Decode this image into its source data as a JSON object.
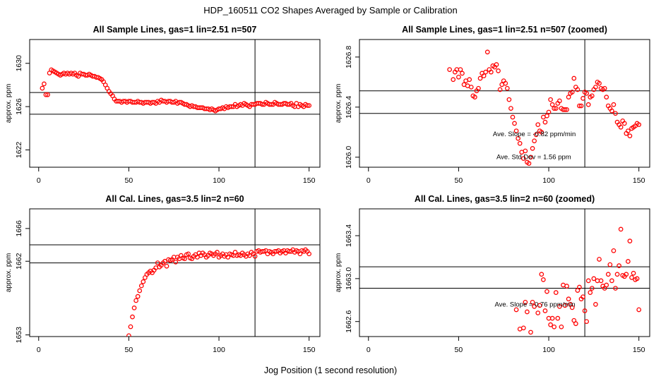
{
  "figure": {
    "title": "HDP_160511  CO2 Shapes Averaged by Sample or Calibration",
    "xlabel": "Jog Position (1 second resolution)",
    "marker_color": "#ff0000",
    "line_color": "#000000"
  },
  "chart_data": [
    {
      "type": "scatter",
      "title": "All Sample Lines, gas=1 lin=2.51 n=507",
      "ylabel": "approx. ppm",
      "xlim": [
        -5,
        156
      ],
      "ylim": [
        1620.4,
        1632.2
      ],
      "xticks": [
        0,
        50,
        100,
        150
      ],
      "yticks": [
        1622,
        1626,
        1630
      ],
      "hlines": [
        1627.3,
        1625.3
      ],
      "vline": 120,
      "annotations": [],
      "series": [
        {
          "name": "",
          "x": [
            2,
            3,
            4,
            5,
            6,
            7,
            8,
            9,
            10,
            11,
            12,
            13,
            14,
            15,
            16,
            17,
            18,
            19,
            20,
            21,
            22,
            23,
            24,
            25,
            26,
            27,
            28,
            29,
            30,
            31,
            32,
            33,
            34,
            35,
            36,
            37,
            38,
            39,
            40,
            41,
            42,
            43,
            44,
            45,
            46,
            47,
            48,
            49,
            50,
            51,
            52,
            53,
            54,
            55,
            56,
            57,
            58,
            59,
            60,
            61,
            62,
            63,
            64,
            65,
            66,
            67,
            68,
            69,
            70,
            71,
            72,
            73,
            74,
            75,
            76,
            77,
            78,
            79,
            80,
            81,
            82,
            83,
            84,
            85,
            86,
            87,
            88,
            89,
            90,
            91,
            92,
            93,
            94,
            95,
            96,
            97,
            98,
            99,
            100,
            101,
            102,
            103,
            104,
            105,
            106,
            107,
            108,
            109,
            110,
            111,
            112,
            113,
            114,
            115,
            116,
            117,
            118,
            119,
            120,
            121,
            122,
            123,
            124,
            125,
            126,
            127,
            128,
            129,
            130,
            131,
            132,
            133,
            134,
            135,
            136,
            137,
            138,
            139,
            140,
            141,
            142,
            143,
            144,
            145,
            146,
            147,
            148,
            149,
            150
          ],
          "y": [
            1627.7,
            1628.1,
            1627.1,
            1627.1,
            1629.1,
            1629.4,
            1629.3,
            1629.2,
            1629.1,
            1629.0,
            1628.9,
            1629.0,
            1629.1,
            1629.0,
            1629.1,
            1629.0,
            1629.1,
            1629.0,
            1629.1,
            1628.9,
            1628.8,
            1629.1,
            1629.0,
            1629.0,
            1628.9,
            1628.9,
            1629.0,
            1628.9,
            1628.8,
            1628.8,
            1628.7,
            1628.7,
            1628.6,
            1628.5,
            1628.3,
            1628.0,
            1627.7,
            1627.4,
            1627.2,
            1627.0,
            1626.7,
            1626.5,
            1626.5,
            1626.5,
            1626.4,
            1626.5,
            1626.5,
            1626.4,
            1626.5,
            1626.5,
            1626.4,
            1626.4,
            1626.4,
            1626.5,
            1626.4,
            1626.4,
            1626.3,
            1626.4,
            1626.4,
            1626.4,
            1626.3,
            1626.4,
            1626.4,
            1626.3,
            1626.5,
            1626.4,
            1626.6,
            1626.5,
            1626.5,
            1626.4,
            1626.5,
            1626.5,
            1626.4,
            1626.4,
            1626.5,
            1626.3,
            1626.4,
            1626.4,
            1626.3,
            1626.2,
            1626.2,
            1626.1,
            1626.0,
            1626.1,
            1626.0,
            1626.0,
            1625.9,
            1625.9,
            1625.9,
            1625.9,
            1625.8,
            1625.8,
            1625.8,
            1625.7,
            1625.8,
            1625.7,
            1625.6,
            1625.7,
            1625.8,
            1625.8,
            1625.9,
            1625.8,
            1626.0,
            1625.9,
            1626.0,
            1626.0,
            1626.0,
            1626.2,
            1626.0,
            1626.1,
            1626.2,
            1626.1,
            1626.3,
            1626.2,
            1626.1,
            1626.0,
            1626.2,
            1626.2,
            1626.2,
            1626.3,
            1626.3,
            1626.3,
            1626.2,
            1626.2,
            1626.4,
            1626.3,
            1626.2,
            1626.2,
            1626.2,
            1626.4,
            1626.3,
            1626.2,
            1626.2,
            1626.2,
            1626.3,
            1626.3,
            1626.2,
            1626.2,
            1626.3,
            1626.1,
            1626.0,
            1626.3,
            1626.0,
            1626.2,
            1626.1,
            1626.0,
            1626.2,
            1626.1,
            1626.1
          ]
        }
      ]
    },
    {
      "type": "scatter",
      "title": "All Sample Lines, gas=1 lin=2.51 n=507 (zoomed)",
      "ylabel": "approx. ppm",
      "xlim": [
        -5,
        156
      ],
      "ylim": [
        1625.92,
        1626.94
      ],
      "xticks": [
        0,
        50,
        100,
        150
      ],
      "yticks": [
        1626.0,
        1626.4,
        1626.8
      ],
      "ytick_labels": [
        "1626.0",
        "1626.4",
        "1626.8"
      ],
      "hlines": [
        1626.53,
        1626.35
      ],
      "vline": 120,
      "annotations": [
        {
          "text": "Ave. Slope =  -0.82  ppm/min",
          "x": 69,
          "y": 1626.184
        },
        {
          "text": "Ave. Std Dev =  1.56  ppm",
          "x": 71,
          "y": 1626.003
        }
      ],
      "series": [
        {
          "name": "",
          "x": [
            45,
            47,
            48,
            49,
            50,
            51,
            52,
            53,
            54,
            55,
            56,
            57,
            58,
            59,
            60,
            61,
            62,
            63,
            64,
            65,
            66,
            67,
            68,
            69,
            70,
            71,
            72,
            73,
            74,
            75,
            76,
            77,
            78,
            79,
            80,
            81,
            82,
            83,
            84,
            85,
            86,
            87,
            88,
            89,
            90,
            91,
            92,
            93,
            94,
            95,
            96,
            97,
            98,
            99,
            100,
            101,
            102,
            103,
            104,
            105,
            106,
            107,
            108,
            109,
            110,
            111,
            112,
            113,
            114,
            115,
            116,
            117,
            118,
            119,
            120,
            121,
            122,
            123,
            124,
            125,
            126,
            127,
            128,
            129,
            130,
            131,
            132,
            133,
            134,
            135,
            136,
            137,
            138,
            139,
            140,
            141,
            142,
            143,
            144,
            145,
            146,
            147,
            148,
            149,
            150
          ],
          "y": [
            1626.7,
            1626.62,
            1626.68,
            1626.7,
            1626.64,
            1626.7,
            1626.67,
            1626.58,
            1626.61,
            1626.57,
            1626.62,
            1626.56,
            1626.49,
            1626.48,
            1626.53,
            1626.55,
            1626.63,
            1626.67,
            1626.65,
            1626.68,
            1626.84,
            1626.7,
            1626.68,
            1626.73,
            1626.72,
            1626.74,
            1626.69,
            1626.54,
            1626.58,
            1626.61,
            1626.59,
            1626.55,
            1626.46,
            1626.39,
            1626.32,
            1626.27,
            1626.21,
            1626.15,
            1626.11,
            1626.04,
            1625.99,
            1626.05,
            1625.96,
            1625.95,
            1626.0,
            1626.07,
            1626.13,
            1626.18,
            1626.26,
            1626.21,
            1626.2,
            1626.32,
            1626.28,
            1626.33,
            1626.36,
            1626.46,
            1626.42,
            1626.39,
            1626.39,
            1626.43,
            1626.45,
            1626.39,
            1626.38,
            1626.38,
            1626.38,
            1626.48,
            1626.51,
            1626.52,
            1626.63,
            1626.56,
            1626.54,
            1626.41,
            1626.41,
            1626.47,
            1626.52,
            1626.51,
            1626.42,
            1626.48,
            1626.49,
            1626.54,
            1626.56,
            1626.6,
            1626.59,
            1626.55,
            1626.54,
            1626.55,
            1626.48,
            1626.41,
            1626.39,
            1626.37,
            1626.42,
            1626.35,
            1626.28,
            1626.26,
            1626.24,
            1626.29,
            1626.27,
            1626.19,
            1626.21,
            1626.17,
            1626.23,
            1626.24,
            1626.25,
            1626.27,
            1626.26
          ]
        }
      ]
    },
    {
      "type": "scatter",
      "title": "All Cal. Lines, gas=3.5 lin=2 n=60",
      "ylabel": "approx. ppm",
      "xlim": [
        -5,
        156
      ],
      "ylim": [
        1652.8,
        1668.4
      ],
      "xticks": [
        0,
        50,
        100,
        150
      ],
      "yticks": [
        1653,
        1662,
        1666
      ],
      "hlines": [
        1664.0,
        1661.8
      ],
      "vline": 120,
      "annotations": [],
      "series": [
        {
          "name": "",
          "x": [
            50,
            51,
            52,
            53,
            54,
            55,
            56,
            57,
            58,
            59,
            60,
            61,
            62,
            63,
            64,
            65,
            66,
            67,
            68,
            69,
            70,
            71,
            72,
            73,
            74,
            75,
            76,
            77,
            78,
            79,
            80,
            81,
            82,
            83,
            84,
            85,
            86,
            87,
            88,
            89,
            90,
            91,
            92,
            93,
            94,
            95,
            96,
            97,
            98,
            99,
            100,
            101,
            102,
            103,
            104,
            105,
            106,
            107,
            108,
            109,
            110,
            111,
            112,
            113,
            114,
            115,
            116,
            117,
            118,
            119,
            120,
            121,
            122,
            123,
            124,
            125,
            126,
            127,
            128,
            129,
            130,
            131,
            132,
            133,
            134,
            135,
            136,
            137,
            138,
            139,
            140,
            141,
            142,
            143,
            144,
            145,
            146,
            147,
            148,
            149,
            150
          ],
          "y": [
            1652.9,
            1654.0,
            1655.2,
            1656.3,
            1657.2,
            1657.7,
            1658.4,
            1659.0,
            1659.5,
            1660.0,
            1660.4,
            1660.6,
            1660.8,
            1660.6,
            1660.9,
            1661.2,
            1661.8,
            1661.3,
            1661.5,
            1661.8,
            1662.0,
            1661.4,
            1662.2,
            1662.1,
            1662.2,
            1662.5,
            1661.9,
            1662.5,
            1662.3,
            1662.7,
            1662.4,
            1662.3,
            1662.8,
            1662.9,
            1662.4,
            1662.3,
            1662.6,
            1662.8,
            1662.5,
            1663.0,
            1662.7,
            1663.0,
            1662.8,
            1662.5,
            1662.7,
            1663.0,
            1662.9,
            1662.7,
            1662.9,
            1663.1,
            1662.5,
            1662.7,
            1662.9,
            1662.6,
            1662.8,
            1662.5,
            1662.9,
            1662.8,
            1662.7,
            1663.1,
            1662.7,
            1662.8,
            1662.7,
            1663.0,
            1662.8,
            1662.6,
            1662.9,
            1662.7,
            1663.1,
            1662.9,
            1662.6,
            1663.2,
            1663.3,
            1663.1,
            1663.2,
            1663.2,
            1663.3,
            1662.9,
            1663.2,
            1663.1,
            1662.9,
            1663.2,
            1663.2,
            1663.3,
            1663.0,
            1663.2,
            1663.3,
            1663.0,
            1663.3,
            1663.2,
            1663.2,
            1663.4,
            1663.1,
            1663.3,
            1663.2,
            1662.9,
            1663.3,
            1663.2,
            1663.4,
            1663.2,
            1662.9
          ]
        }
      ]
    },
    {
      "type": "scatter",
      "title": "All Cal. Lines, gas=3.5 lin=2 n=60 (zoomed)",
      "ylabel": "approx. ppm",
      "xlim": [
        -5,
        156
      ],
      "ylim": [
        1662.46,
        1663.65
      ],
      "xticks": [
        0,
        50,
        100,
        150
      ],
      "yticks": [
        1662.6,
        1663.0,
        1663.4
      ],
      "ytick_labels": [
        "1662.6",
        "1663.0",
        "1663.4"
      ],
      "hlines": [
        1663.11,
        1662.91
      ],
      "vline": 120,
      "annotations": [
        {
          "text": "Ave. Slope =  0.76  ppm/min",
          "x": 70,
          "y": 1662.76
        }
      ],
      "series": [
        {
          "name": "",
          "x": [
            82,
            84,
            86,
            87,
            88,
            90,
            91,
            92,
            94,
            95,
            96,
            97,
            98,
            99,
            100,
            101,
            102,
            103,
            104,
            105,
            106,
            107,
            108,
            109,
            110,
            111,
            112,
            113,
            114,
            115,
            116,
            117,
            118,
            119,
            120,
            121,
            122,
            123,
            124,
            125,
            126,
            127,
            128,
            129,
            130,
            131,
            132,
            133,
            134,
            135,
            136,
            137,
            138,
            139,
            140,
            141,
            142,
            143,
            144,
            145,
            146,
            147,
            148,
            149,
            150
          ],
          "y": [
            1662.71,
            1662.53,
            1662.54,
            1662.78,
            1662.69,
            1662.5,
            1662.78,
            1662.74,
            1662.68,
            1662.75,
            1663.04,
            1662.99,
            1662.7,
            1662.88,
            1662.63,
            1662.57,
            1662.63,
            1662.55,
            1662.87,
            1662.63,
            1662.74,
            1662.55,
            1662.94,
            1662.75,
            1662.93,
            1662.81,
            1662.76,
            1662.73,
            1662.61,
            1662.58,
            1662.89,
            1662.92,
            1662.81,
            1662.83,
            1662.7,
            1662.6,
            1662.98,
            1662.87,
            1662.91,
            1663.0,
            1662.76,
            1662.98,
            1663.18,
            1662.98,
            1662.93,
            1662.91,
            1662.94,
            1663.04,
            1663.13,
            1662.98,
            1663.26,
            1662.91,
            1663.04,
            1663.12,
            1663.46,
            1663.03,
            1663.02,
            1663.04,
            1663.16,
            1663.35,
            1663.01,
            1663.05,
            1662.99,
            1663.0,
            1662.71
          ]
        }
      ]
    }
  ]
}
